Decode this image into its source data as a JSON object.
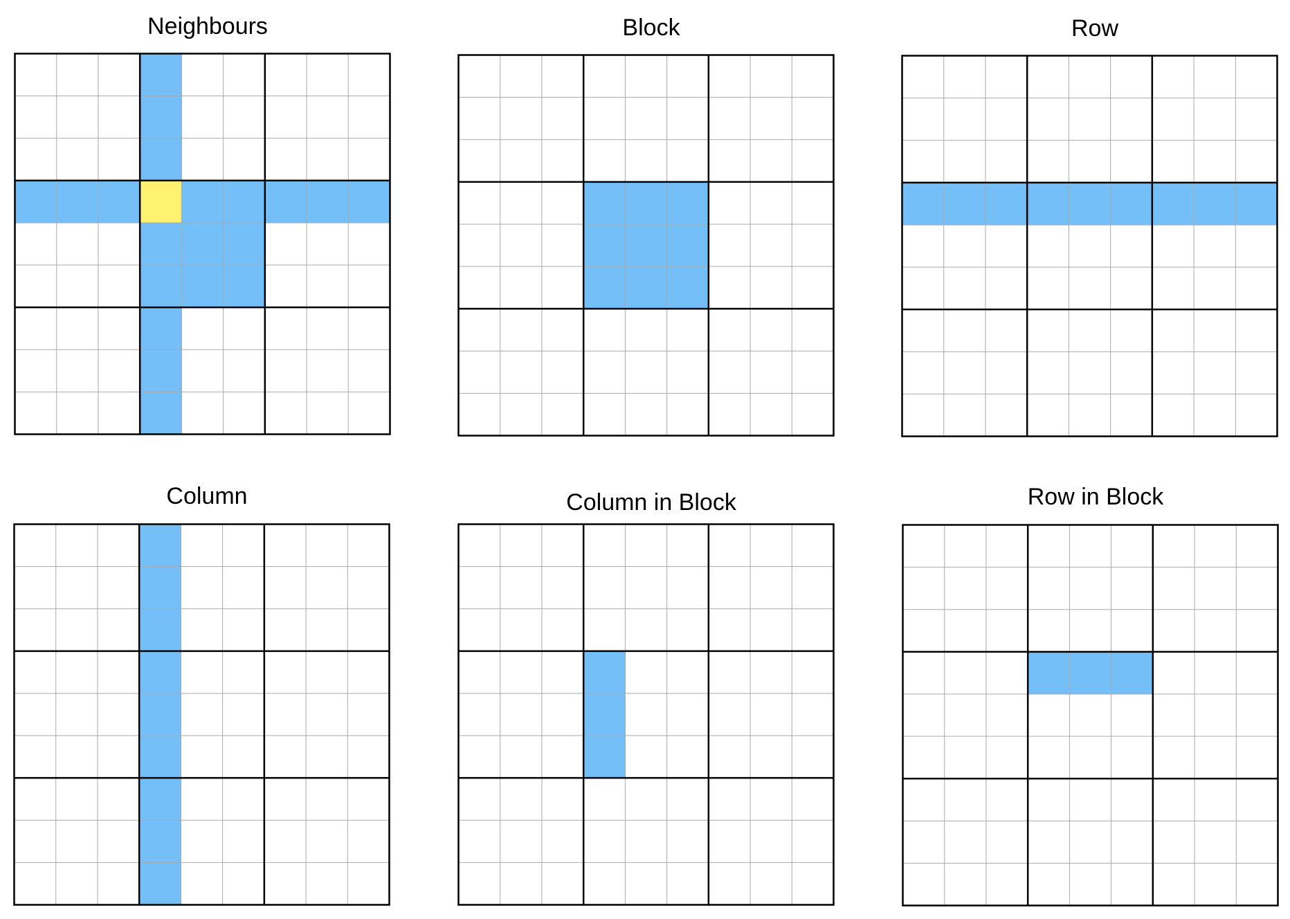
{
  "colors": {
    "background": "#ffffff",
    "highlight": "#74bff8",
    "focus_cell": "#fef270",
    "thin_line": "#a9a9a9",
    "thick_line": "#000000"
  },
  "grid_size": 9,
  "box_size": 3,
  "panels": [
    {
      "title": "Neighbours",
      "highlights": [
        {
          "row": 3,
          "col": 0
        },
        {
          "row": 3,
          "col": 1
        },
        {
          "row": 3,
          "col": 2
        },
        {
          "row": 3,
          "col": 4
        },
        {
          "row": 3,
          "col": 5
        },
        {
          "row": 3,
          "col": 6
        },
        {
          "row": 3,
          "col": 7
        },
        {
          "row": 3,
          "col": 8
        },
        {
          "row": 0,
          "col": 3
        },
        {
          "row": 1,
          "col": 3
        },
        {
          "row": 2,
          "col": 3
        },
        {
          "row": 4,
          "col": 3
        },
        {
          "row": 5,
          "col": 3
        },
        {
          "row": 6,
          "col": 3
        },
        {
          "row": 7,
          "col": 3
        },
        {
          "row": 8,
          "col": 3
        },
        {
          "row": 4,
          "col": 4
        },
        {
          "row": 4,
          "col": 5
        },
        {
          "row": 5,
          "col": 4
        },
        {
          "row": 5,
          "col": 5
        }
      ],
      "focus": [
        {
          "row": 3,
          "col": 3
        }
      ]
    },
    {
      "title": "Block",
      "highlights": [
        {
          "row": 3,
          "col": 3
        },
        {
          "row": 3,
          "col": 4
        },
        {
          "row": 3,
          "col": 5
        },
        {
          "row": 4,
          "col": 3
        },
        {
          "row": 4,
          "col": 4
        },
        {
          "row": 4,
          "col": 5
        },
        {
          "row": 5,
          "col": 3
        },
        {
          "row": 5,
          "col": 4
        },
        {
          "row": 5,
          "col": 5
        }
      ],
      "focus": []
    },
    {
      "title": "Row",
      "highlights": [
        {
          "row": 3,
          "col": 0
        },
        {
          "row": 3,
          "col": 1
        },
        {
          "row": 3,
          "col": 2
        },
        {
          "row": 3,
          "col": 3
        },
        {
          "row": 3,
          "col": 4
        },
        {
          "row": 3,
          "col": 5
        },
        {
          "row": 3,
          "col": 6
        },
        {
          "row": 3,
          "col": 7
        },
        {
          "row": 3,
          "col": 8
        }
      ],
      "focus": []
    },
    {
      "title": "Column",
      "highlights": [
        {
          "row": 0,
          "col": 3
        },
        {
          "row": 1,
          "col": 3
        },
        {
          "row": 2,
          "col": 3
        },
        {
          "row": 3,
          "col": 3
        },
        {
          "row": 4,
          "col": 3
        },
        {
          "row": 5,
          "col": 3
        },
        {
          "row": 6,
          "col": 3
        },
        {
          "row": 7,
          "col": 3
        },
        {
          "row": 8,
          "col": 3
        }
      ],
      "focus": []
    },
    {
      "title": "Column in Block",
      "highlights": [
        {
          "row": 3,
          "col": 3
        },
        {
          "row": 4,
          "col": 3
        },
        {
          "row": 5,
          "col": 3
        }
      ],
      "focus": []
    },
    {
      "title": "Row in Block",
      "highlights": [
        {
          "row": 3,
          "col": 3
        },
        {
          "row": 3,
          "col": 4
        },
        {
          "row": 3,
          "col": 5
        }
      ],
      "focus": []
    }
  ]
}
